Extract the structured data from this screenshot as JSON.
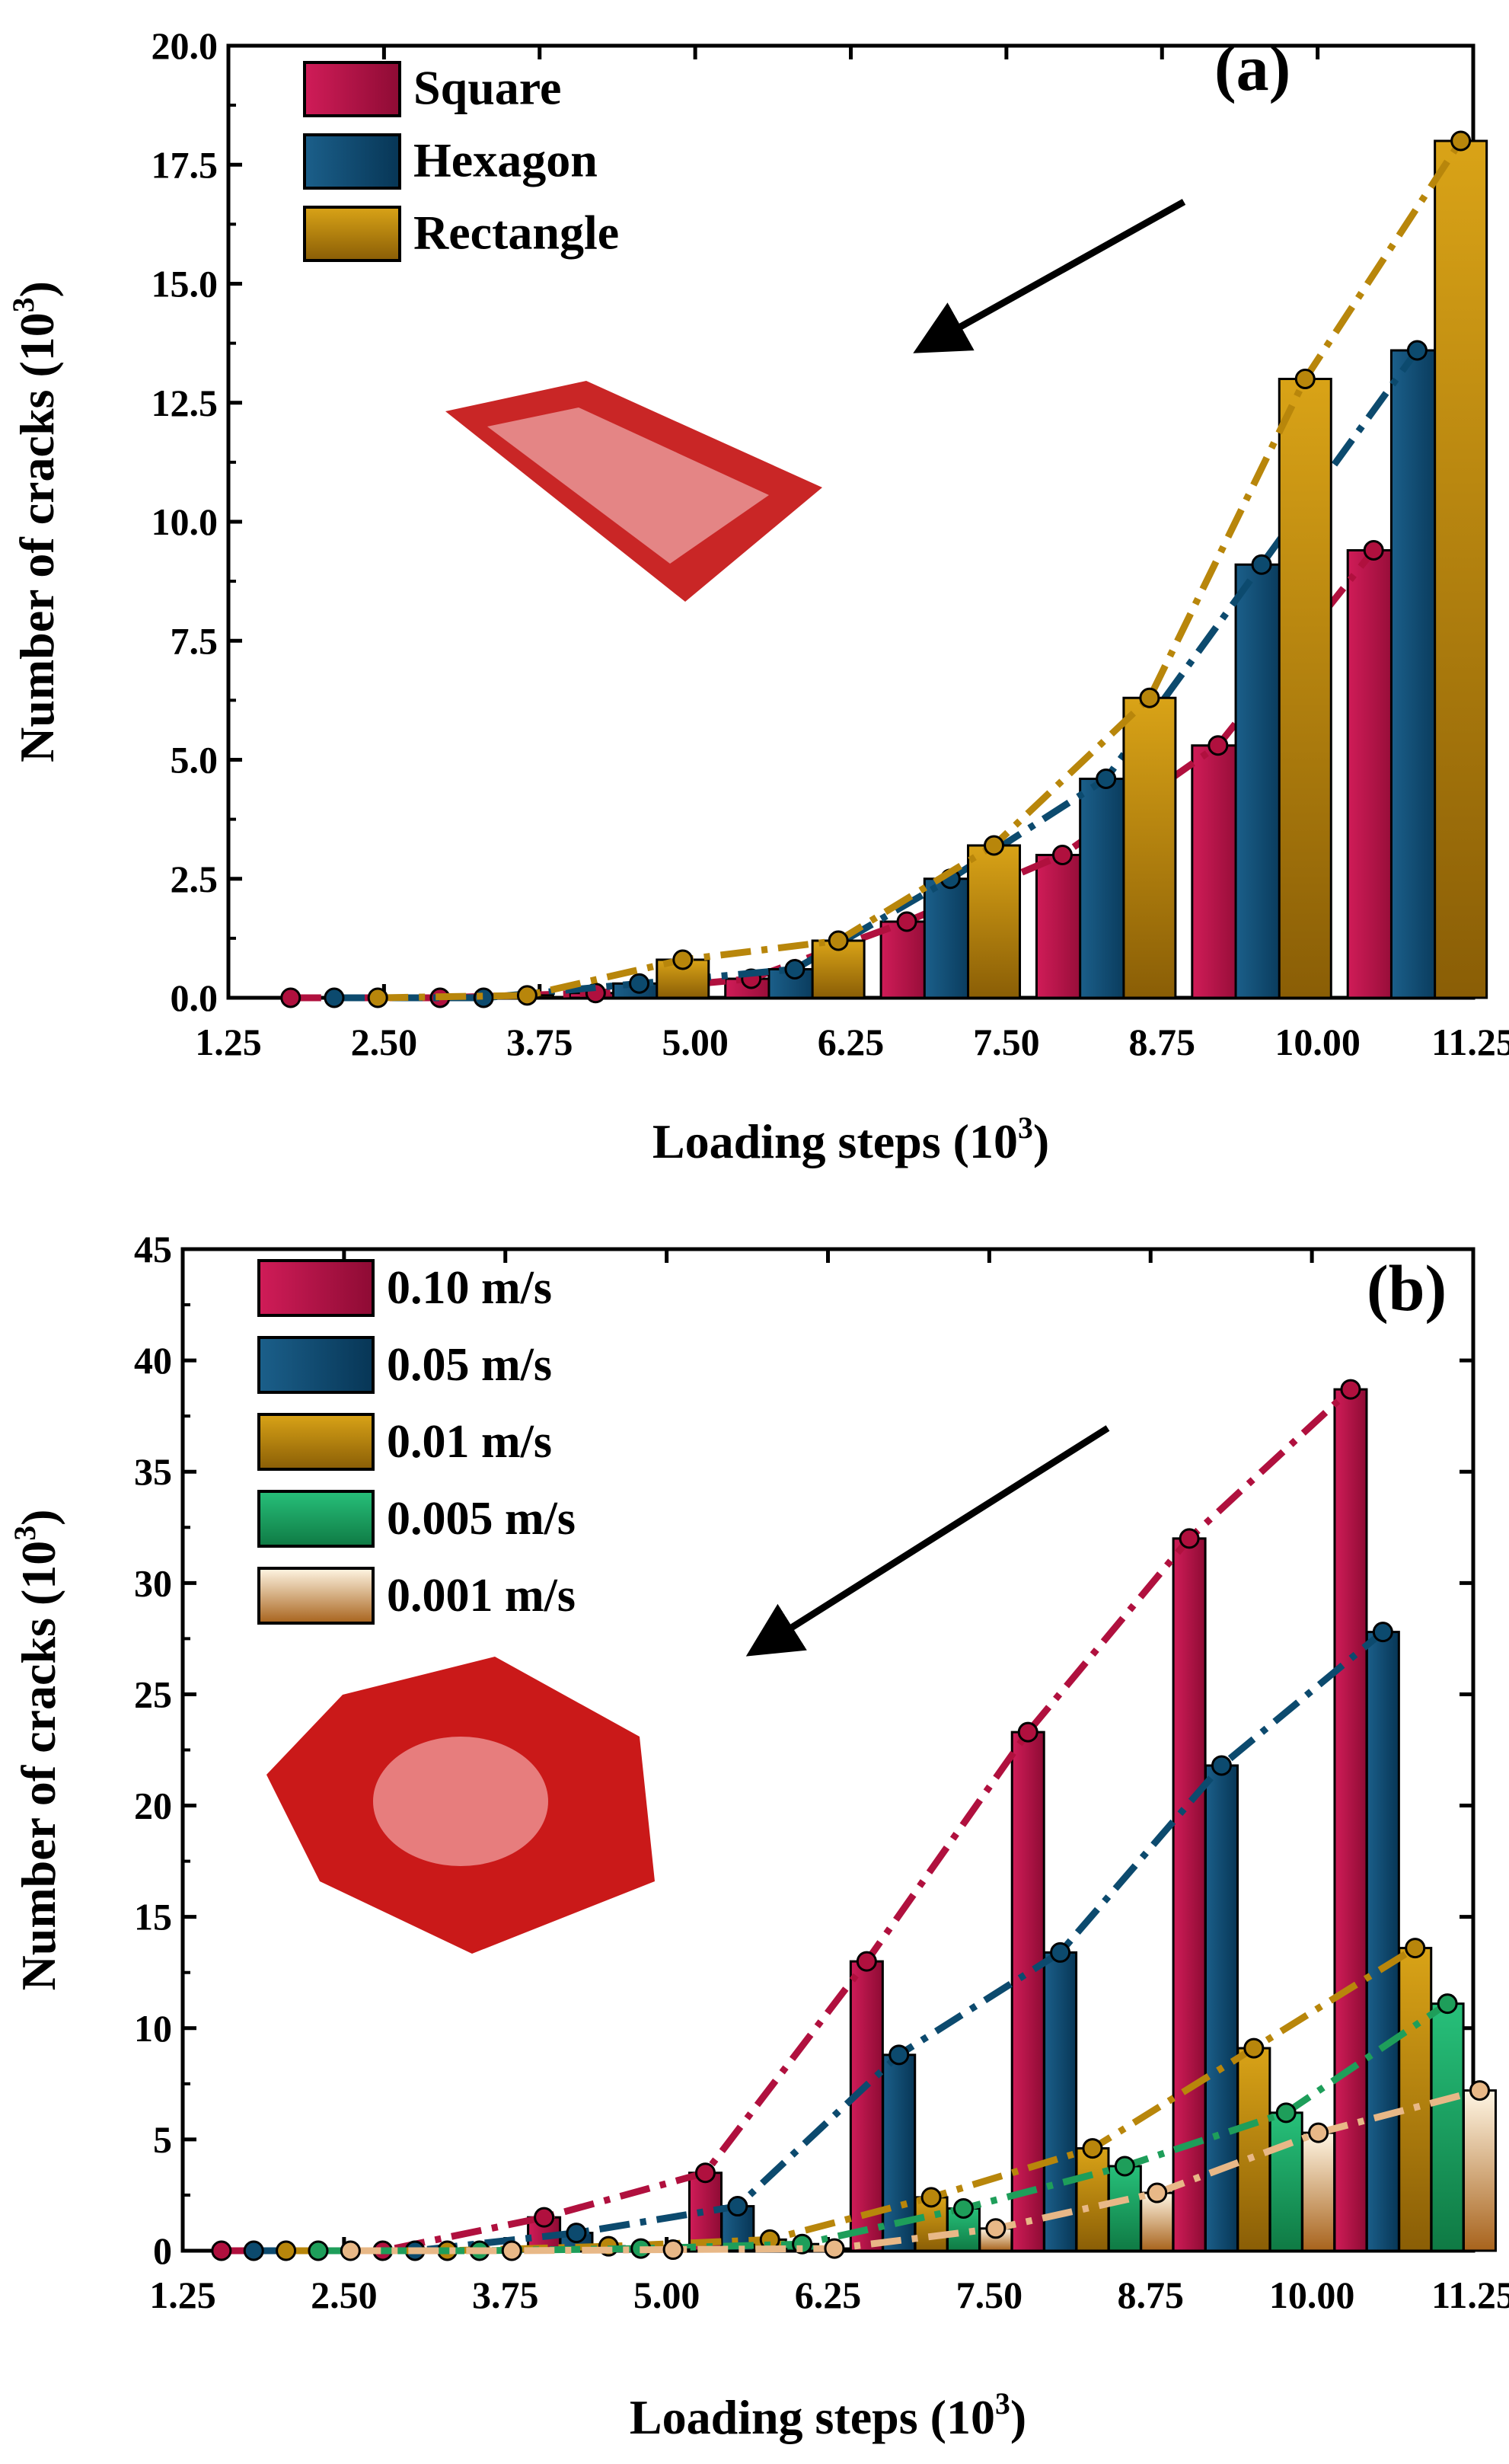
{
  "chart_data": [
    {
      "type": "bar",
      "panel_label": "(a)",
      "xlabel_main": "Loading steps (10",
      "xlabel_exp": "3",
      "xlabel_close": ")",
      "ylabel_main": "Number of cracks (10",
      "ylabel_exp": "3",
      "ylabel_close": ")",
      "xlim": [
        1.25,
        11.25
      ],
      "ylim": [
        0,
        20
      ],
      "xticks": [
        "1.25",
        "2.50",
        "3.75",
        "5.00",
        "6.25",
        "7.50",
        "8.75",
        "10.00",
        "11.25"
      ],
      "yticks": [
        "0.0",
        "2.5",
        "5.0",
        "7.5",
        "10.0",
        "12.5",
        "15.0",
        "17.5",
        "20.0"
      ],
      "legend_position": "top-left",
      "inset": "rectangular cracked specimen (square plate) with arrow pointing to the chart",
      "series": [
        {
          "name": "Square",
          "color": "#b0103e",
          "x": [
            1.75,
            2.95,
            4.2,
            5.45,
            6.7,
            7.95,
            9.2,
            10.45
          ],
          "values": [
            0.0,
            0.0,
            0.1,
            0.4,
            1.6,
            3.0,
            5.3,
            9.4
          ]
        },
        {
          "name": "Hexagon",
          "color": "#0c4a6e",
          "x": [
            2.1,
            3.3,
            4.55,
            5.8,
            7.05,
            8.3,
            9.55,
            10.8
          ],
          "values": [
            0.0,
            0.0,
            0.3,
            0.6,
            2.5,
            4.6,
            9.1,
            13.6
          ]
        },
        {
          "name": "Rectangle",
          "color": "#b8860b",
          "x": [
            2.45,
            3.65,
            4.9,
            6.15,
            7.4,
            8.65,
            9.9,
            11.15
          ],
          "values": [
            0.0,
            0.05,
            0.8,
            1.2,
            3.2,
            6.3,
            13.0,
            18.0
          ]
        }
      ]
    },
    {
      "type": "bar",
      "panel_label": "(b)",
      "xlabel_main": "Loading steps (10",
      "xlabel_exp": "3",
      "xlabel_close": ")",
      "ylabel_main": "Number of cracks (10",
      "ylabel_exp": "3",
      "ylabel_close": ")",
      "xlim": [
        1.25,
        11.25
      ],
      "ylim": [
        0,
        45
      ],
      "xticks": [
        "1.25",
        "2.50",
        "3.75",
        "5.00",
        "6.25",
        "7.50",
        "8.75",
        "10.00",
        "11.25"
      ],
      "yticks": [
        "0",
        "5",
        "10",
        "15",
        "20",
        "25",
        "30",
        "35",
        "40",
        "45"
      ],
      "legend_position": "top-left",
      "inset": "hexagonal cracked specimen with arrow pointing to the chart",
      "series": [
        {
          "name": "0.10 m/s",
          "color": "#b0103e",
          "x": [
            1.55,
            2.8,
            4.05,
            5.3,
            6.55,
            7.8,
            9.05,
            10.3
          ],
          "values": [
            0.0,
            0.0,
            1.5,
            3.5,
            13.0,
            23.3,
            32.0,
            38.7
          ]
        },
        {
          "name": "0.05 m/s",
          "color": "#0c4a6e",
          "x": [
            1.8,
            3.05,
            4.3,
            5.55,
            6.8,
            8.05,
            9.3,
            10.55
          ],
          "values": [
            0.0,
            0.0,
            0.8,
            2.0,
            8.8,
            13.4,
            21.8,
            27.8
          ]
        },
        {
          "name": "0.01 m/s",
          "color": "#b8860b",
          "x": [
            2.05,
            3.3,
            4.55,
            5.8,
            7.05,
            8.3,
            9.55,
            10.8
          ],
          "values": [
            0.0,
            0.0,
            0.2,
            0.5,
            2.4,
            4.6,
            9.1,
            13.6
          ]
        },
        {
          "name": "0.005 m/s",
          "color": "#1e9e5a",
          "x": [
            2.3,
            3.55,
            4.8,
            6.05,
            7.3,
            8.55,
            9.8,
            11.05
          ],
          "values": [
            0.0,
            0.0,
            0.1,
            0.3,
            1.9,
            3.8,
            6.2,
            11.1
          ]
        },
        {
          "name": "0.001 m/s",
          "color": "#e8b887",
          "x": [
            2.55,
            3.8,
            5.05,
            6.3,
            7.55,
            8.8,
            10.05,
            11.3
          ],
          "values": [
            0.0,
            0.0,
            0.05,
            0.1,
            1.0,
            2.6,
            5.3,
            7.2
          ]
        }
      ]
    }
  ]
}
